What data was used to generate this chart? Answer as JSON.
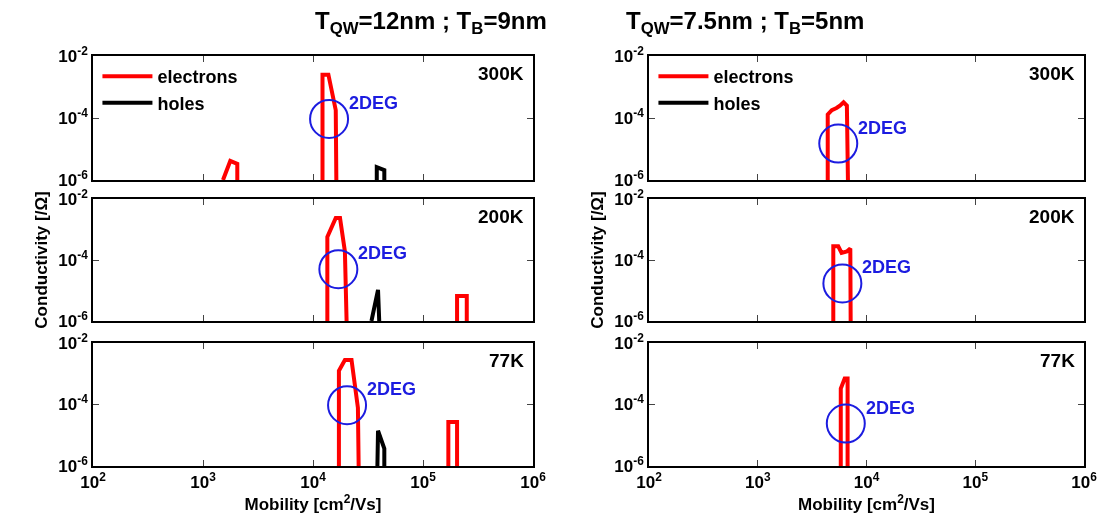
{
  "chart_data": [
    {
      "type": "line",
      "title": "T$_{QW}$=12nm ; T$_{B}$=9nm",
      "log": "xy",
      "xlim": [
        100,
        1000000
      ],
      "ylim": [
        1e-06,
        0.01
      ],
      "xticks": [
        {
          "value": 100,
          "label": "10$^{2}$"
        },
        {
          "value": 1000,
          "label": "10$^{3}$"
        },
        {
          "value": 10000,
          "label": "10$^{4}$"
        },
        {
          "value": 100000,
          "label": "10$^{5}$"
        },
        {
          "value": 1000000,
          "label": "10$^{6}$"
        }
      ],
      "yticks": [
        {
          "value": 1e-06,
          "label": "10$^{-6}$"
        },
        {
          "value": 0.0001,
          "label": "10$^{-4}$"
        },
        {
          "value": 0.01,
          "label": "10$^{-2}$"
        }
      ],
      "tick_labels": "y",
      "legend": "top left",
      "line_style": "solid",
      "annotations": [
        "300K",
        {
          "text": "2DEG",
          "x": 14000,
          "y": 9.3e-05
        }
      ],
      "series": [
        {
          "name": "electrons",
          "color": "#ff0000",
          "x": [
            1520,
            1770,
            2050,
            2050,
            null,
            12200,
            12200,
            13800,
            16100,
            16300
          ],
          "values": [
            1e-06,
            4.1e-06,
            3.3e-06,
            1e-06,
            null,
            1e-06,
            0.0025,
            0.0025,
            0.00018,
            1e-06
          ]
        },
        {
          "name": "holes",
          "color": "#000000",
          "x": [
            38000,
            38000,
            44500,
            44500
          ],
          "values": [
            1e-06,
            2.6e-06,
            2.1e-06,
            1e-06
          ]
        }
      ]
    },
    {
      "type": "line",
      "ylabel": "Conductivity [/Ω]",
      "log": "xy",
      "xlim": [
        100,
        1000000
      ],
      "ylim": [
        1e-06,
        0.01
      ],
      "xticks": [
        {
          "value": 100,
          "label": "10$^{2}$"
        },
        {
          "value": 1000,
          "label": "10$^{3}$"
        },
        {
          "value": 10000,
          "label": "10$^{4}$"
        },
        {
          "value": 100000,
          "label": "10$^{5}$"
        },
        {
          "value": 1000000,
          "label": "10$^{6}$"
        }
      ],
      "yticks": [
        {
          "value": 1e-06,
          "label": "10$^{-6}$"
        },
        {
          "value": 0.0001,
          "label": "10$^{-4}$"
        },
        {
          "value": 0.01,
          "label": "10$^{-2}$"
        }
      ],
      "tick_labels": "y",
      "line_style": "solid",
      "annotations": [
        "200K",
        {
          "text": "2DEG",
          "x": 17000,
          "y": 5e-05
        }
      ],
      "series": [
        {
          "color": "#ff0000",
          "x": [
            13500,
            13500,
            16100,
            17600,
            19500,
            20200,
            null,
            204000,
            204000,
            250000,
            250000
          ],
          "values": [
            1e-06,
            0.00057,
            0.0024,
            0.0024,
            0.00019,
            1e-06,
            null,
            1e-06,
            6.6e-06,
            6.6e-06,
            1e-06
          ]
        },
        {
          "color": "#000000",
          "x": [
            34000,
            39000,
            40000
          ],
          "values": [
            1e-06,
            1.05e-05,
            1e-06
          ]
        }
      ]
    },
    {
      "type": "line",
      "xlabel": "Mobility [cm$^{2}$/Vs]",
      "log": "xy",
      "xlim": [
        100,
        1000000
      ],
      "ylim": [
        1e-06,
        0.01
      ],
      "xticks": [
        {
          "value": 100,
          "label": "10$^{2}$"
        },
        {
          "value": 1000,
          "label": "10$^{3}$"
        },
        {
          "value": 10000,
          "label": "10$^{4}$"
        },
        {
          "value": 100000,
          "label": "10$^{5}$"
        },
        {
          "value": 1000000,
          "label": "10$^{6}$"
        }
      ],
      "yticks": [
        {
          "value": 1e-06,
          "label": "10$^{-6}$"
        },
        {
          "value": 0.0001,
          "label": "10$^{-4}$"
        },
        {
          "value": 0.01,
          "label": "10$^{-2}$"
        }
      ],
      "line_style": "solid",
      "annotations": [
        "77K",
        {
          "text": "2DEG",
          "x": 20400,
          "y": 9.5e-05
        }
      ],
      "series": [
        {
          "color": "#ff0000",
          "x": [
            17200,
            17200,
            19500,
            22400,
            25600,
            26000,
            null,
            170000,
            170000,
            204000,
            204000
          ],
          "values": [
            1e-06,
            0.00126,
            0.0028,
            0.0028,
            7.8e-05,
            1e-06,
            null,
            1e-06,
            2.7e-05,
            2.7e-05,
            1e-06
          ]
        },
        {
          "color": "#000000",
          "x": [
            38500,
            39000,
            44500,
            44500
          ],
          "values": [
            1e-06,
            1.4e-05,
            3.7e-06,
            1e-06
          ]
        }
      ]
    },
    {
      "type": "line",
      "title": "T$_{QW}$=7.5nm ; T$_{B}$=5nm",
      "log": "xy",
      "xlim": [
        100,
        1000000
      ],
      "ylim": [
        1e-06,
        0.01
      ],
      "xticks": [
        {
          "value": 100,
          "label": "10$^{2}$"
        },
        {
          "value": 1000,
          "label": "10$^{3}$"
        },
        {
          "value": 10000,
          "label": "10$^{4}$"
        },
        {
          "value": 100000,
          "label": "10$^{5}$"
        },
        {
          "value": 1000000,
          "label": "10$^{6}$"
        }
      ],
      "yticks": [
        {
          "value": 1e-06,
          "label": "10$^{-6}$"
        },
        {
          "value": 0.0001,
          "label": "10$^{-4}$"
        },
        {
          "value": 0.01,
          "label": "10$^{-2}$"
        }
      ],
      "tick_labels": "y",
      "legend": "top left",
      "line_style": "solid",
      "annotations": [
        "300K",
        {
          "text": "2DEG",
          "x": 5500,
          "y": 1.5e-05
        }
      ],
      "series": [
        {
          "name": "electrons",
          "color": "#ff0000",
          "x": [
            4400,
            4400,
            4800,
            5300,
            5700,
            6150,
            6600,
            6750
          ],
          "values": [
            1e-06,
            0.00013,
            0.00018,
            0.00021,
            0.00025,
            0.00032,
            0.00025,
            1e-06
          ]
        },
        {
          "name": "holes",
          "color": "#000000",
          "line_style": "solid"
        }
      ]
    },
    {
      "type": "line",
      "ylabel": "Conductivity [/Ω]",
      "log": "xy",
      "xlim": [
        100,
        1000000
      ],
      "ylim": [
        1e-06,
        0.01
      ],
      "xticks": [
        {
          "value": 100,
          "label": "10$^{2}$"
        },
        {
          "value": 1000,
          "label": "10$^{3}$"
        },
        {
          "value": 10000,
          "label": "10$^{4}$"
        },
        {
          "value": 100000,
          "label": "10$^{5}$"
        },
        {
          "value": 1000000,
          "label": "10$^{6}$"
        }
      ],
      "yticks": [
        {
          "value": 1e-06,
          "label": "10$^{-6}$"
        },
        {
          "value": 0.0001,
          "label": "10$^{-4}$"
        },
        {
          "value": 0.01,
          "label": "10$^{-2}$"
        }
      ],
      "tick_labels": "y",
      "line_style": "solid",
      "annotations": [
        "200K",
        {
          "text": "2DEG",
          "x": 6000,
          "y": 1.7e-05
        }
      ],
      "series": [
        {
          "color": "#ff0000",
          "x": [
            4950,
            4950,
            5500,
            5900,
            6600,
            7100,
            7150
          ],
          "values": [
            1e-06,
            0.00028,
            0.00028,
            0.00017,
            0.00019,
            0.00024,
            1e-06
          ]
        }
      ]
    },
    {
      "type": "line",
      "xlabel": "Mobility [cm$^{2}$/Vs]",
      "log": "xy",
      "xlim": [
        100,
        1000000
      ],
      "ylim": [
        1e-06,
        0.01
      ],
      "xticks": [
        {
          "value": 100,
          "label": "10$^{2}$"
        },
        {
          "value": 1000,
          "label": "10$^{3}$"
        },
        {
          "value": 10000,
          "label": "10$^{4}$"
        },
        {
          "value": 100000,
          "label": "10$^{5}$"
        },
        {
          "value": 1000000,
          "label": "10$^{6}$"
        }
      ],
      "yticks": [
        {
          "value": 1e-06,
          "label": "10$^{-6}$"
        },
        {
          "value": 0.0001,
          "label": "10$^{-4}$"
        },
        {
          "value": 0.01,
          "label": "10$^{-2}$"
        }
      ],
      "line_style": "solid",
      "annotations": [
        "77K",
        {
          "text": "2DEG",
          "x": 6450,
          "y": 2.4e-05
        }
      ],
      "series": [
        {
          "color": "#ff0000",
          "x": [
            5800,
            5800,
            6300,
            6700,
            6700
          ],
          "values": [
            1e-06,
            0.00033,
            0.0007,
            0.0007,
            1e-06
          ]
        }
      ]
    }
  ]
}
